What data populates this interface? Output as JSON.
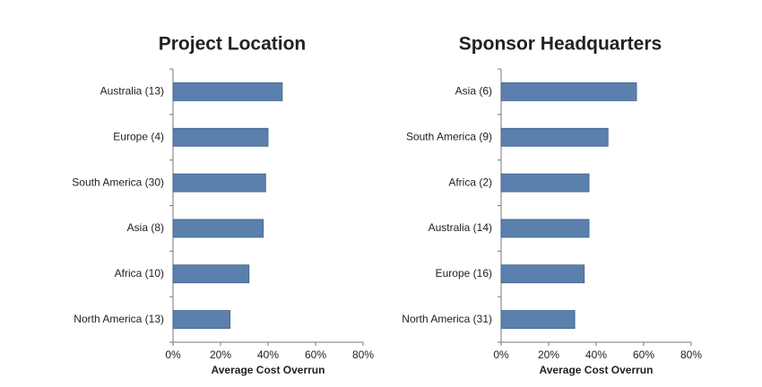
{
  "chart_data": [
    {
      "type": "bar",
      "title": "Project Location",
      "categories": [
        "Australia (13)",
        "Europe (4)",
        "South America (30)",
        "Asia (8)",
        "Africa (10)",
        "North America (13)"
      ],
      "values": [
        46,
        40,
        39,
        38,
        32,
        24
      ],
      "color": "#5b80ae",
      "xlim": [
        0,
        80
      ],
      "xticks": [
        {
          "value": 0,
          "label": "0%"
        },
        {
          "value": 20,
          "label": "20%"
        },
        {
          "value": 40,
          "label": "40%"
        },
        {
          "value": 60,
          "label": "60%"
        },
        {
          "value": 80,
          "label": "80%"
        }
      ],
      "xlabel": "Average Cost Overrun"
    },
    {
      "type": "bar",
      "title": "Sponsor Headquarters",
      "categories": [
        "Asia (6)",
        "South America (9)",
        "Africa (2)",
        "Australia (14)",
        "Europe (16)",
        "North America (31)"
      ],
      "values": [
        57,
        45,
        37,
        37,
        35,
        31
      ],
      "color": "#5b80ae",
      "xlim": [
        0,
        80
      ],
      "xticks": [
        {
          "value": 0,
          "label": "0%"
        },
        {
          "value": 20,
          "label": "20%"
        },
        {
          "value": 40,
          "label": "40%"
        },
        {
          "value": 60,
          "label": "60%"
        },
        {
          "value": 80,
          "label": "80%"
        }
      ],
      "xlabel": "Average Cost Overrun"
    }
  ]
}
